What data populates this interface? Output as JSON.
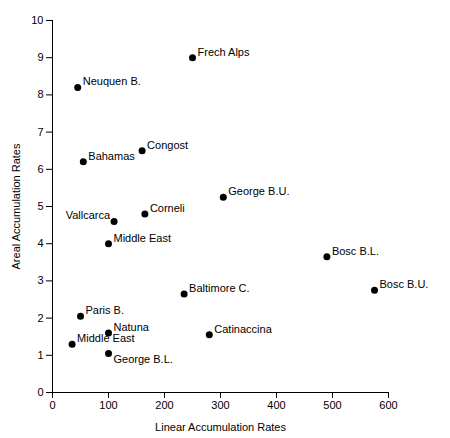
{
  "chart_data": {
    "type": "scatter",
    "xlabel": "Linear Accumulation Rates",
    "ylabel": "Areal Accumulation Rates",
    "labels": [
      "Frech Alps",
      "Neuquen B.",
      "Congost",
      "Bahamas",
      "George B.U.",
      "Vallcarca",
      "Corneli",
      "Middle East",
      "Bosc B.L.",
      "Baltimore C.",
      "Bosc B.U.",
      "Paris B.",
      "Natuna",
      "Catinaccina",
      "Middle East",
      "George B.L."
    ],
    "x": [
      250,
      45,
      160,
      55,
      305,
      110,
      165,
      100,
      490,
      235,
      575,
      50,
      100,
      280,
      35,
      100
    ],
    "y": [
      9.0,
      8.2,
      6.5,
      6.2,
      5.25,
      4.6,
      4.8,
      4.0,
      3.65,
      2.65,
      2.75,
      2.05,
      1.6,
      1.55,
      1.3,
      1.05
    ],
    "xlim": [
      0,
      600
    ],
    "ylim": [
      0,
      10
    ],
    "xticks": [
      0,
      100,
      200,
      300,
      400,
      500,
      600
    ],
    "yticks": [
      0,
      1,
      2,
      3,
      4,
      5,
      6,
      7,
      8,
      9,
      10
    ],
    "color": "black",
    "grid": false
  }
}
